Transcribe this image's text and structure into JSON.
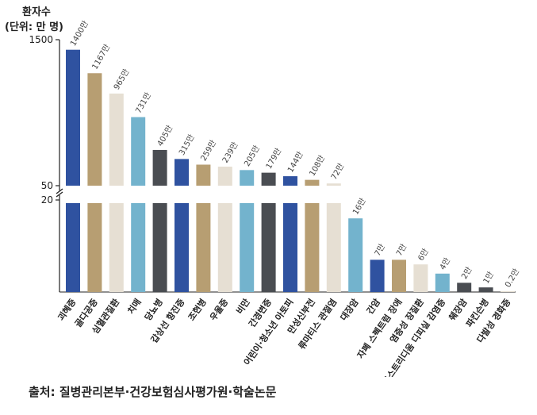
{
  "chart_data": {
    "type": "bar",
    "title": "",
    "ylabel_line1": "환자수",
    "ylabel_line2": "(단위: 만 명)",
    "y_axis_break": true,
    "upper_segment_ticks": [
      "1500",
      "50"
    ],
    "lower_segment_ticks": [
      "20"
    ],
    "categories": [
      "괴혜증",
      "골다공증",
      "심혈관질환",
      "치매",
      "당뇨병",
      "갑상선 항진증",
      "조현병",
      "우울증",
      "비만",
      "간경변증",
      "어린이·청소년 아토피",
      "만성신부전",
      "류마티스 관절염",
      "대장암",
      "간암",
      "자폐 스펙트럼 장애",
      "염증성 장질환",
      "클로스트리디움 디피실 감염증",
      "췌장암",
      "파킨슨병",
      "다발성 경화증"
    ],
    "values": [
      1400,
      1167,
      965,
      731,
      405,
      315,
      259,
      239,
      205,
      179,
      144,
      108,
      72,
      16,
      7,
      7,
      6,
      4,
      2,
      1,
      0.2
    ],
    "value_labels": [
      "1400만",
      "1167만",
      "965만",
      "731만",
      "405만",
      "315만",
      "259만",
      "239만",
      "205만",
      "179만",
      "144만",
      "108만",
      "72만",
      "16만",
      "7만",
      "7만",
      "6만",
      "4만",
      "2만",
      "1만",
      "0.2만"
    ],
    "colors": [
      "#2f52a0",
      "#b79e72",
      "#e6dfd3",
      "#73b3cd",
      "#4a4d52",
      "#2f52a0",
      "#b79e72",
      "#e6dfd3",
      "#73b3cd",
      "#4a4d52",
      "#2f52a0",
      "#b79e72",
      "#e6dfd3",
      "#73b3cd",
      "#2f52a0",
      "#b79e72",
      "#e6dfd3",
      "#73b3cd",
      "#4a4d52",
      "#4a4d52",
      "#e6dfd3"
    ],
    "grid": false,
    "legend": "none"
  },
  "source": "출처: 질병관리본부·건강보험심사평가원·학술논문"
}
